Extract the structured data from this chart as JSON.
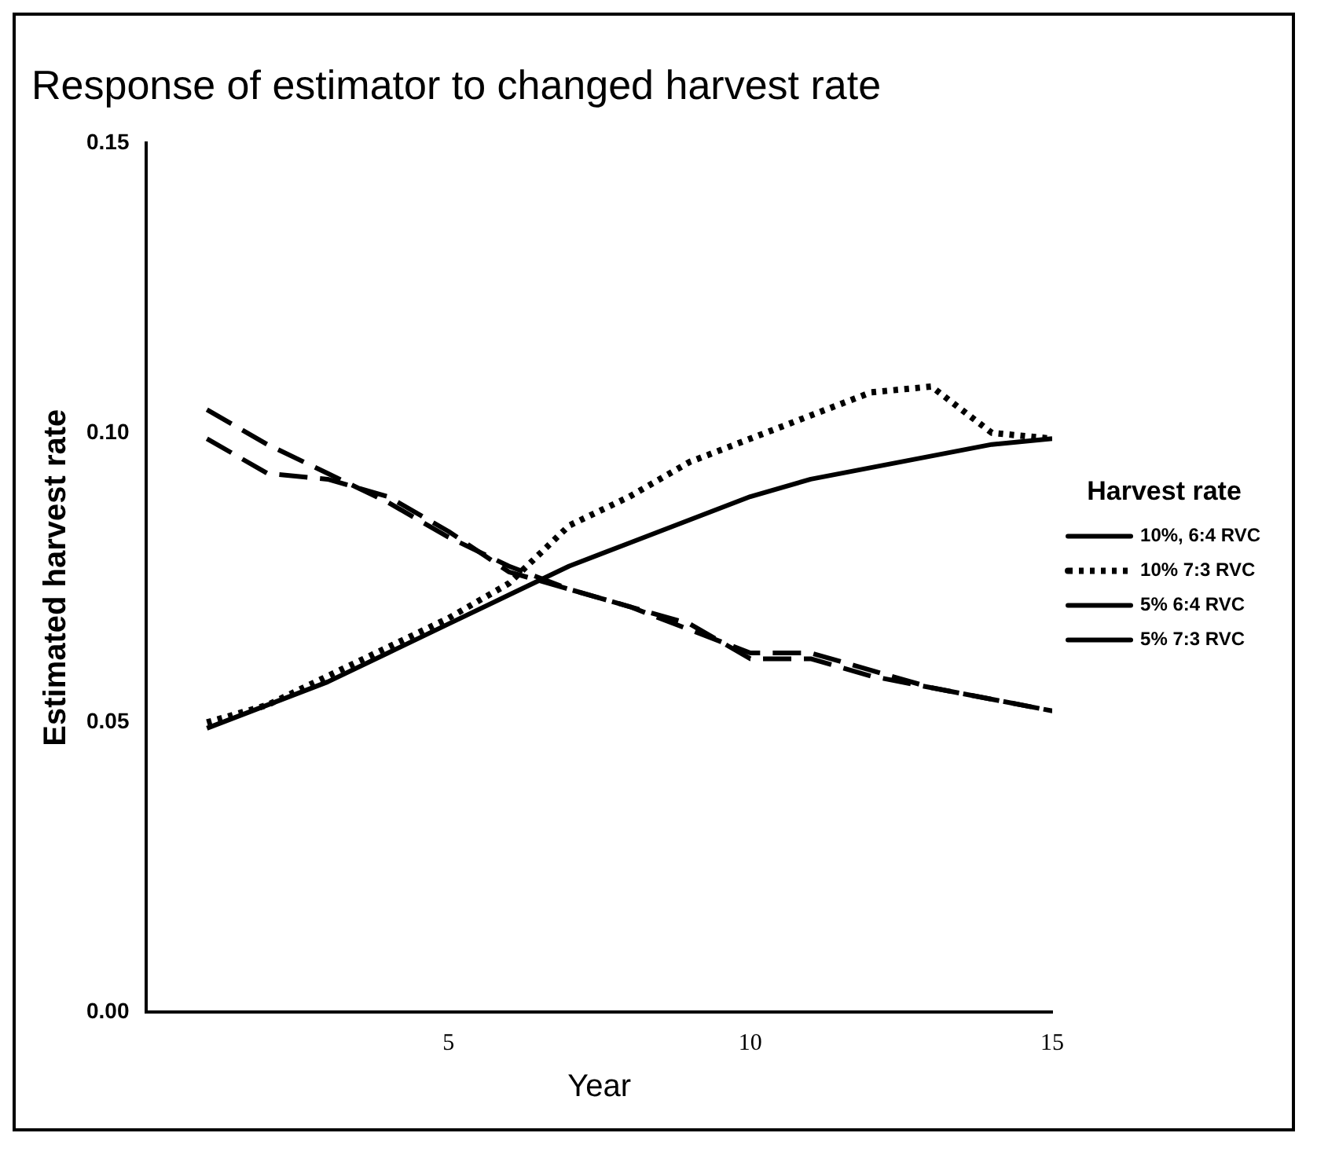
{
  "chart_data": {
    "type": "line",
    "title": "Response of estimator to changed harvest rate",
    "xlabel": "Year",
    "ylabel": "Estimated harvest rate",
    "legend_title": "Harvest rate",
    "legend": "right",
    "grid": false,
    "marker": "none",
    "x": [
      1,
      2,
      3,
      4,
      5,
      6,
      7,
      8,
      9,
      10,
      11,
      12,
      13,
      14,
      15
    ],
    "xlim": [
      0,
      15
    ],
    "xticks": [
      5,
      10,
      15
    ],
    "ylim": [
      0,
      0.15
    ],
    "yticks": [
      {
        "value": 0,
        "label": "0.00"
      },
      {
        "value": 0.05,
        "label": "0.05"
      },
      {
        "value": 0.1,
        "label": "0.10"
      },
      {
        "value": 0.15,
        "label": "0.15"
      }
    ],
    "series": [
      {
        "name": "10%, 6:4 RVC",
        "color": "#000000",
        "line_style": "solid",
        "values": [
          0.049,
          0.053,
          0.057,
          0.062,
          0.067,
          0.072,
          0.077,
          0.081,
          0.085,
          0.089,
          0.092,
          0.094,
          0.096,
          0.098,
          0.099
        ]
      },
      {
        "name": "10% 7:3 RVC",
        "color": "#000000",
        "line_style": "dotted",
        "values": [
          0.05,
          0.053,
          0.058,
          0.063,
          0.068,
          0.074,
          0.084,
          0.089,
          0.095,
          0.099,
          0.103,
          0.107,
          0.108,
          0.1,
          0.099
        ]
      },
      {
        "name": "5% 6:4 RVC",
        "color": "#000000",
        "line_style": "dashed",
        "values": [
          0.104,
          0.098,
          0.093,
          0.088,
          0.082,
          0.077,
          0.073,
          0.07,
          0.067,
          0.061,
          0.061,
          0.058,
          0.056,
          0.054,
          0.052
        ]
      },
      {
        "name": "5% 7:3 RVC",
        "color": "#000000",
        "line_style": "dashed",
        "values": [
          0.099,
          0.093,
          0.092,
          0.089,
          0.083,
          0.076,
          0.073,
          0.07,
          0.066,
          0.062,
          0.062,
          0.059,
          0.056,
          0.054,
          0.052
        ]
      }
    ]
  }
}
